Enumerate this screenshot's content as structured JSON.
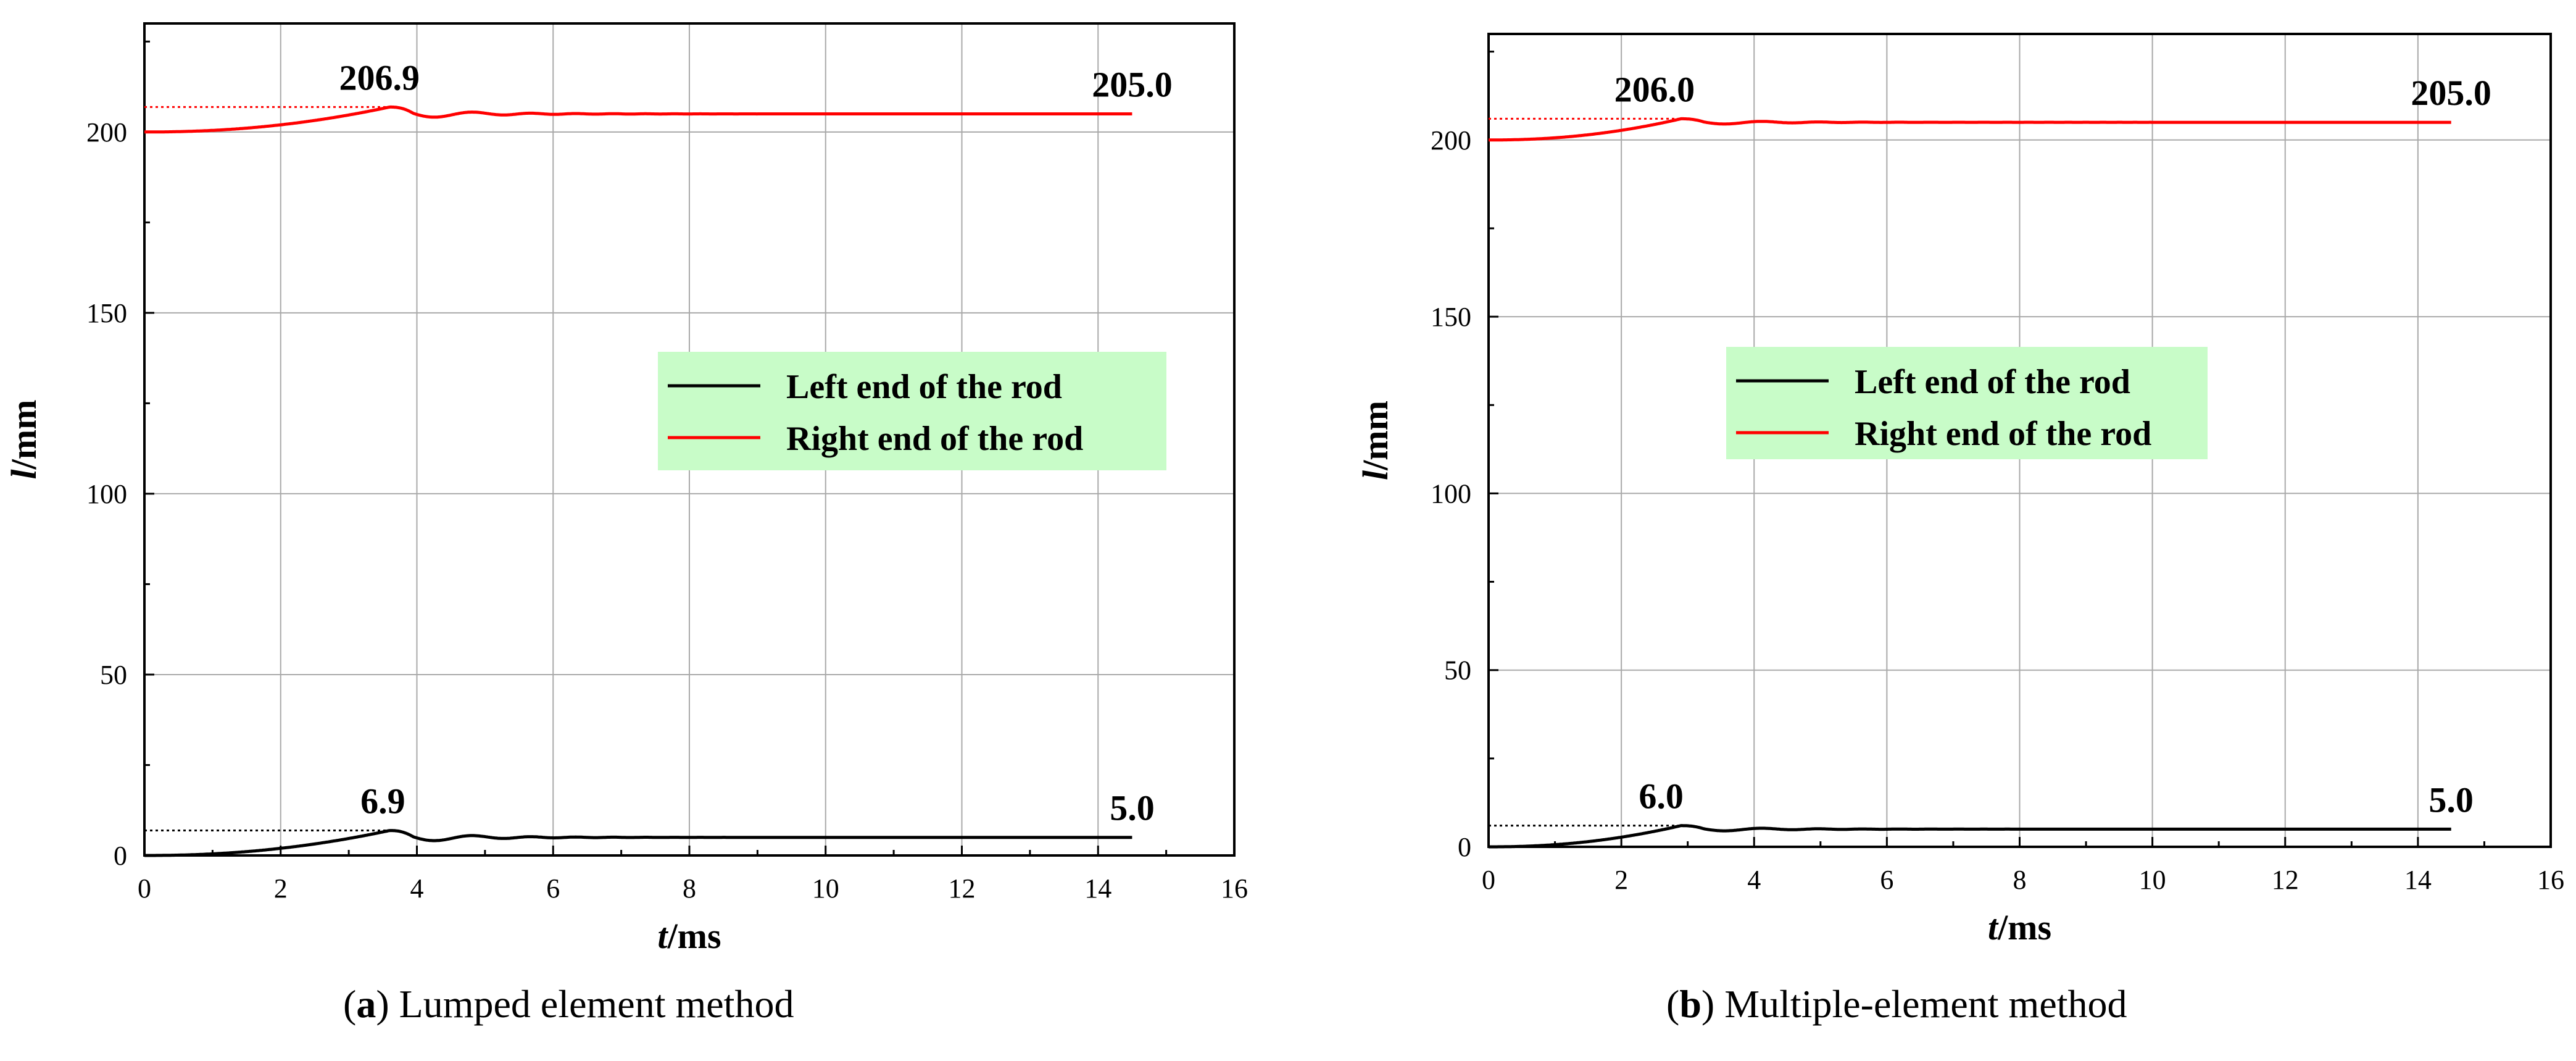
{
  "chart_data": [
    {
      "type": "line",
      "id": "a",
      "xlabel_italic": "t",
      "xlabel_unit": "/ms",
      "ylabel_italic": "l",
      "ylabel_unit": "/mm",
      "xlim": [
        0,
        16
      ],
      "ylim": [
        0,
        230
      ],
      "xticks": [
        0,
        2,
        4,
        6,
        8,
        10,
        12,
        14,
        16
      ],
      "yticks": [
        0,
        50,
        100,
        150,
        200
      ],
      "grid": true,
      "legend_position": "center-right",
      "legend_bg": "#c8fcc8",
      "series": [
        {
          "name": "Left end of the rod",
          "color": "#000000",
          "base": 0,
          "peak_t": 3.6,
          "peak": 6.9,
          "final": 5.0,
          "t_end": 14.5
        },
        {
          "name": "Right end of the rod",
          "color": "#ff0000",
          "base": 200,
          "peak_t": 3.6,
          "peak": 206.9,
          "final": 205.0,
          "t_end": 14.5
        }
      ],
      "annotations": [
        {
          "text": "206.9",
          "x": 3.45,
          "y": 206.9
        },
        {
          "text": "205.0",
          "x": 14.5,
          "y": 205.0
        },
        {
          "text": "6.9",
          "x": 3.5,
          "y": 6.9
        },
        {
          "text": "5.0",
          "x": 14.5,
          "y": 5.0
        }
      ],
      "caption_letter": "a",
      "caption_text": "Lumped element method"
    },
    {
      "type": "line",
      "id": "b",
      "xlabel_italic": "t",
      "xlabel_unit": "/ms",
      "ylabel_italic": "l",
      "ylabel_unit": "/mm",
      "xlim": [
        0,
        16
      ],
      "ylim": [
        0,
        230
      ],
      "xticks": [
        0,
        2,
        4,
        6,
        8,
        10,
        12,
        14,
        16
      ],
      "yticks": [
        0,
        50,
        100,
        150,
        200
      ],
      "grid": true,
      "legend_position": "center",
      "legend_bg": "#c8fcc8",
      "series": [
        {
          "name": "Left end of the rod",
          "color": "#000000",
          "base": 0,
          "peak_t": 2.9,
          "peak": 6.0,
          "final": 5.0,
          "t_end": 14.5
        },
        {
          "name": "Right end of the rod",
          "color": "#ff0000",
          "base": 200,
          "peak_t": 2.9,
          "peak": 206.0,
          "final": 205.0,
          "t_end": 14.5
        }
      ],
      "annotations": [
        {
          "text": "206.0",
          "x": 2.5,
          "y": 206.0
        },
        {
          "text": "205.0",
          "x": 14.5,
          "y": 205.0
        },
        {
          "text": "6.0",
          "x": 2.6,
          "y": 6.0
        },
        {
          "text": "5.0",
          "x": 14.5,
          "y": 5.0
        }
      ],
      "caption_letter": "b",
      "caption_text": "Multiple-element method"
    }
  ]
}
